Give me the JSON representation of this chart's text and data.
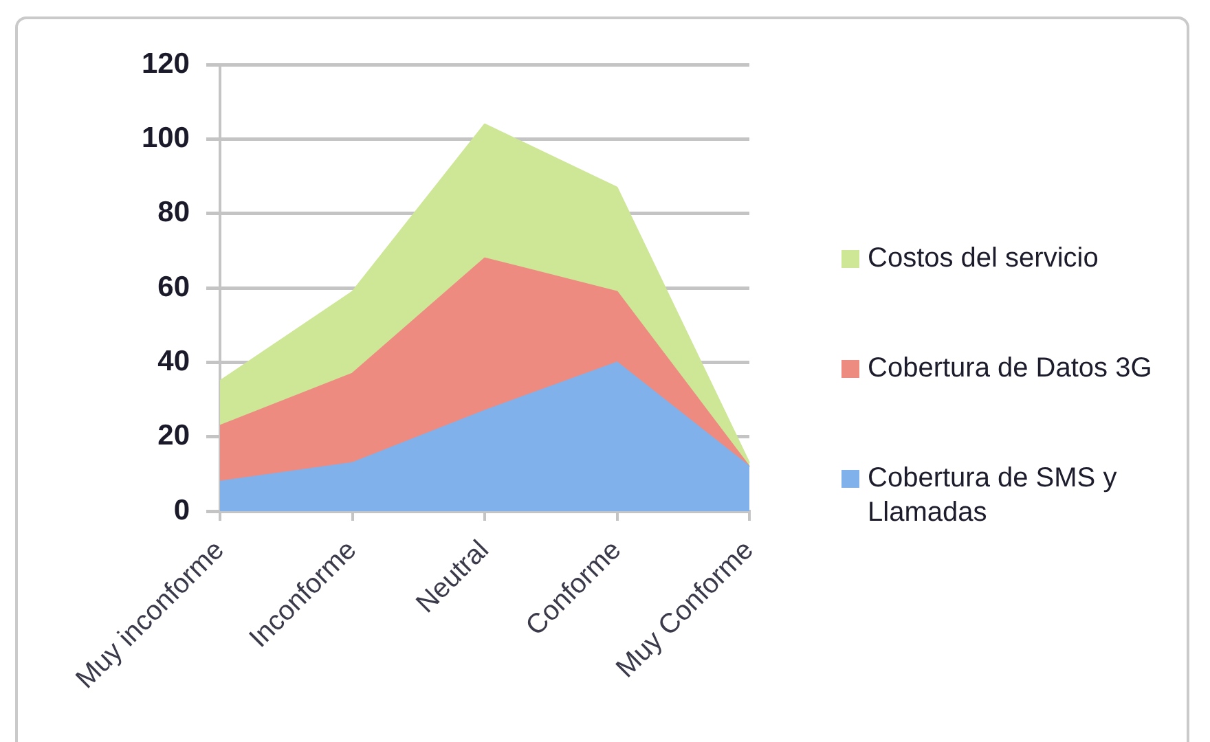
{
  "chart_data": {
    "type": "area",
    "categories": [
      "Muy inconforme",
      "Inconforme",
      "Neutral",
      "Conforme",
      "Muy Conforme"
    ],
    "series": [
      {
        "name": "Cobertura de SMS y Llamadas",
        "color": "#80b1ea",
        "values": [
          8,
          13,
          27,
          40,
          12
        ]
      },
      {
        "name": "Cobertura de Datos 3G",
        "color": "#ee8b81",
        "values": [
          15,
          24,
          41,
          19,
          0
        ]
      },
      {
        "name": "Costos del servicio",
        "color": "#cde797",
        "values": [
          12,
          22,
          36,
          28,
          1
        ]
      }
    ],
    "stacked": true,
    "ylim": [
      0,
      120
    ],
    "yticks": [
      0,
      20,
      40,
      60,
      80,
      100,
      120
    ],
    "grid": "y",
    "legend": "right"
  }
}
